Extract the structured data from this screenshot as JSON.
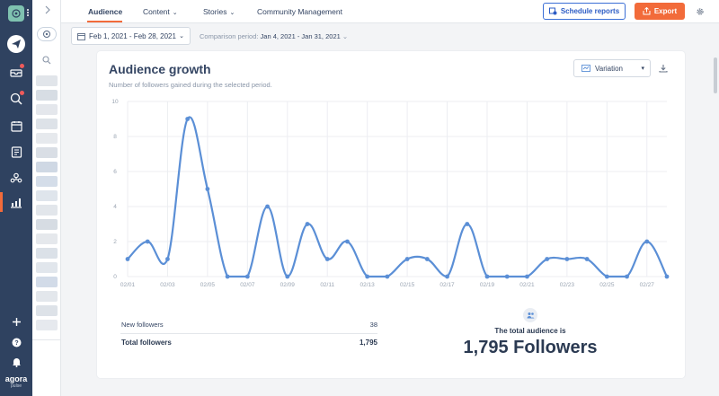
{
  "topbar": {
    "tabs": [
      {
        "label": "Audience",
        "active": true,
        "dropdown": false
      },
      {
        "label": "Content",
        "active": false,
        "dropdown": true
      },
      {
        "label": "Stories",
        "active": false,
        "dropdown": true
      },
      {
        "label": "Community Management",
        "active": false,
        "dropdown": false
      }
    ],
    "schedule_label": "Schedule reports",
    "export_label": "Export"
  },
  "filters": {
    "date_range": "Feb 1, 2021 - Feb 28, 2021",
    "comparison_label": "Comparison period:",
    "comparison_range": "Jan 4, 2021 - Jan 31, 2021"
  },
  "card": {
    "title": "Audience growth",
    "subtitle": "Number of followers gained during the selected period.",
    "view_select": "Variation"
  },
  "chart_data": {
    "type": "line",
    "x": [
      "02/01",
      "02/02",
      "02/03",
      "02/04",
      "02/05",
      "02/06",
      "02/07",
      "02/08",
      "02/09",
      "02/10",
      "02/11",
      "02/12",
      "02/13",
      "02/14",
      "02/15",
      "02/16",
      "02/17",
      "02/18",
      "02/19",
      "02/20",
      "02/21",
      "02/22",
      "02/23",
      "02/24",
      "02/25",
      "02/26",
      "02/27",
      "02/28"
    ],
    "x_tick_labels": [
      "02/01",
      "02/03",
      "02/05",
      "02/07",
      "02/09",
      "02/11",
      "02/13",
      "02/15",
      "02/17",
      "02/19",
      "02/21",
      "02/23",
      "02/25",
      "02/27"
    ],
    "values": [
      1,
      2,
      1,
      9,
      5,
      0,
      0,
      4,
      0,
      3,
      1,
      2,
      0,
      0,
      1,
      1,
      0,
      3,
      0,
      0,
      0,
      1,
      1,
      1,
      0,
      0,
      2,
      0
    ],
    "y_ticks": [
      0,
      2,
      4,
      6,
      8,
      10
    ],
    "ylim": [
      0,
      10
    ],
    "grid": true,
    "color": "#5b8fd6"
  },
  "stats": {
    "new_followers_label": "New followers",
    "new_followers_value": "38",
    "total_followers_label": "Total followers",
    "total_followers_value": "1,795"
  },
  "audience": {
    "caption": "The total audience is",
    "value": "1,795 Followers"
  },
  "brand": {
    "name": "agora",
    "sub": "pulse"
  }
}
